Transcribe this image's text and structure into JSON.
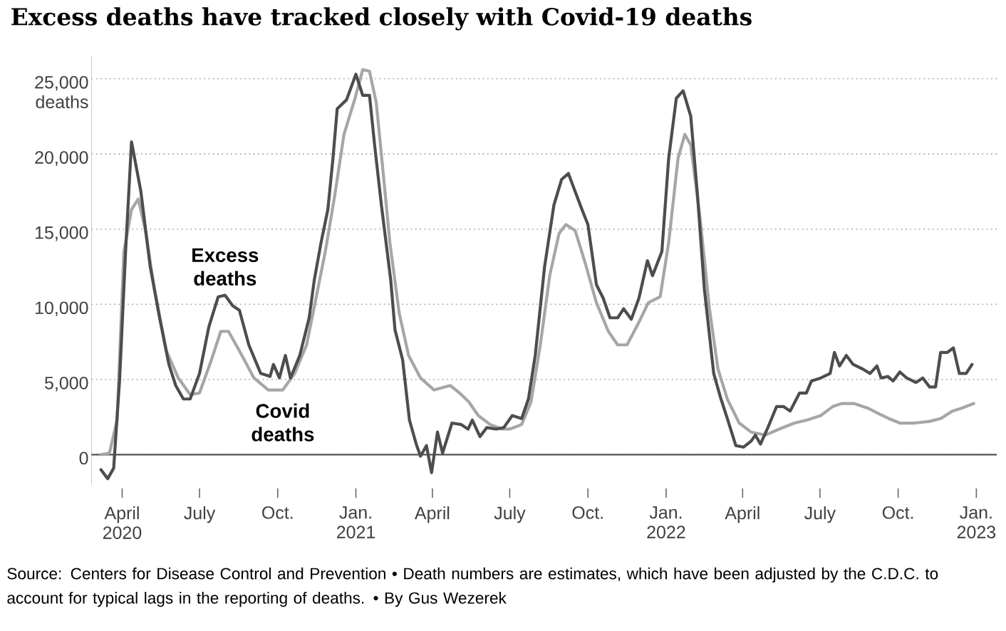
{
  "chart_data": {
    "type": "line",
    "title": "Excess deaths have tracked closely with Covid-19 deaths",
    "xlim": [
      "2020-02-25",
      "2023-01-25"
    ],
    "ylim": [
      -2000,
      26500
    ],
    "xticks": [
      {
        "value": "2020-04-01",
        "label": "April 2020"
      },
      {
        "value": "2020-07-01",
        "label": "July"
      },
      {
        "value": "2020-10-01",
        "label": "Oct."
      },
      {
        "value": "2021-01-01",
        "label": "Jan. 2021"
      },
      {
        "value": "2021-04-01",
        "label": "April"
      },
      {
        "value": "2021-07-01",
        "label": "July"
      },
      {
        "value": "2021-10-01",
        "label": "Oct."
      },
      {
        "value": "2022-01-01",
        "label": "Jan. 2022"
      },
      {
        "value": "2022-04-01",
        "label": "April"
      },
      {
        "value": "2022-07-01",
        "label": "July"
      },
      {
        "value": "2022-10-01",
        "label": "Oct."
      },
      {
        "value": "2023-01-01",
        "label": "Jan. 2023"
      }
    ],
    "yticks": [
      {
        "value": 0,
        "label": "0"
      },
      {
        "value": 5000,
        "label": "5,000"
      },
      {
        "value": 10000,
        "label": "10,000"
      },
      {
        "value": 15000,
        "label": "15,000"
      },
      {
        "value": 20000,
        "label": "20,000"
      },
      {
        "value": 25000,
        "label": "25,000 deaths"
      }
    ],
    "grid": "y",
    "legend": false,
    "marker": "none",
    "line_style": "solid",
    "ref_lines": [
      {
        "axis": "y",
        "value": 0,
        "color": "#555555"
      }
    ],
    "annotations": [
      "Source: Centers for Disease Control and Prevention • Death numbers are estimates, which have been adjusted by the C.D.C. to account for typical lags in the reporting of deaths. • By Gus Wezerek"
    ],
    "series": [
      {
        "name": "Covid deaths",
        "color": "#a6a6a6",
        "x": [
          "2020-03-07",
          "2020-03-17",
          "2020-03-26",
          "2020-04-03",
          "2020-04-12",
          "2020-04-20",
          "2020-04-28",
          "2020-05-09",
          "2020-05-23",
          "2020-06-06",
          "2020-06-20",
          "2020-07-01",
          "2020-07-15",
          "2020-07-26",
          "2020-08-04",
          "2020-08-17",
          "2020-09-03",
          "2020-09-20",
          "2020-10-07",
          "2020-10-21",
          "2020-11-04",
          "2020-11-15",
          "2020-11-26",
          "2020-12-07",
          "2020-12-18",
          "2020-12-31",
          "2021-01-09",
          "2021-01-17",
          "2021-01-25",
          "2021-02-02",
          "2021-02-10",
          "2021-02-21",
          "2021-03-04",
          "2021-03-18",
          "2021-04-03",
          "2021-04-22",
          "2021-05-03",
          "2021-05-14",
          "2021-05-25",
          "2021-06-08",
          "2021-06-22",
          "2021-07-01",
          "2021-07-15",
          "2021-07-26",
          "2021-08-06",
          "2021-08-17",
          "2021-08-28",
          "2021-09-05",
          "2021-09-16",
          "2021-09-27",
          "2021-10-11",
          "2021-10-25",
          "2021-11-05",
          "2021-11-16",
          "2021-11-30",
          "2021-12-11",
          "2021-12-25",
          "2022-01-04",
          "2022-01-15",
          "2022-01-23",
          "2022-01-30",
          "2022-02-10",
          "2022-02-21",
          "2022-03-03",
          "2022-03-14",
          "2022-03-28",
          "2022-04-11",
          "2022-04-28",
          "2022-05-14",
          "2022-06-01",
          "2022-06-16",
          "2022-07-02",
          "2022-07-16",
          "2022-07-27",
          "2022-08-10",
          "2022-08-26",
          "2022-09-09",
          "2022-09-20",
          "2022-10-03",
          "2022-10-20",
          "2022-11-06",
          "2022-11-20",
          "2022-12-04",
          "2022-12-15",
          "2022-12-29"
        ],
        "values": [
          0,
          100,
          2300,
          13500,
          16300,
          17000,
          15000,
          11000,
          6900,
          5100,
          4000,
          4100,
          6300,
          8200,
          8200,
          6900,
          5100,
          4300,
          4300,
          5400,
          7300,
          10400,
          13500,
          17200,
          21300,
          23700,
          25600,
          25500,
          23400,
          18800,
          14100,
          9400,
          6600,
          5100,
          4300,
          4600,
          4100,
          3500,
          2600,
          2000,
          1700,
          1700,
          2000,
          3500,
          7300,
          11900,
          14700,
          15300,
          14900,
          12900,
          10100,
          8200,
          7300,
          7300,
          8800,
          10100,
          10500,
          14100,
          19700,
          21300,
          20600,
          15700,
          9700,
          5700,
          3700,
          2100,
          1500,
          1300,
          1700,
          2100,
          2300,
          2600,
          3200,
          3400,
          3400,
          3100,
          2700,
          2400,
          2100,
          2100,
          2200,
          2400,
          2900,
          3100,
          3400
        ]
      },
      {
        "name": "Excess deaths",
        "color": "#4d4d4d",
        "x": [
          "2020-03-07",
          "2020-03-15",
          "2020-03-22",
          "2020-03-29",
          "2020-04-05",
          "2020-04-12",
          "2020-04-23",
          "2020-05-04",
          "2020-05-15",
          "2020-05-26",
          "2020-06-03",
          "2020-06-12",
          "2020-06-20",
          "2020-07-01",
          "2020-07-12",
          "2020-07-23",
          "2020-07-31",
          "2020-08-09",
          "2020-08-17",
          "2020-08-28",
          "2020-09-11",
          "2020-09-22",
          "2020-09-26",
          "2020-10-03",
          "2020-10-10",
          "2020-10-16",
          "2020-10-27",
          "2020-11-07",
          "2020-11-13",
          "2020-11-21",
          "2020-11-29",
          "2020-12-05",
          "2020-12-10",
          "2020-12-21",
          "2021-01-01",
          "2021-01-09",
          "2021-01-17",
          "2021-01-23",
          "2021-01-31",
          "2021-02-11",
          "2021-02-16",
          "2021-02-25",
          "2021-03-05",
          "2021-03-13",
          "2021-03-18",
          "2021-03-25",
          "2021-03-31",
          "2021-04-07",
          "2021-04-13",
          "2021-04-24",
          "2021-05-05",
          "2021-05-13",
          "2021-05-18",
          "2021-05-27",
          "2021-06-04",
          "2021-06-15",
          "2021-06-24",
          "2021-07-04",
          "2021-07-15",
          "2021-07-23",
          "2021-07-31",
          "2021-08-11",
          "2021-08-22",
          "2021-08-31",
          "2021-09-08",
          "2021-09-16",
          "2021-09-24",
          "2021-10-01",
          "2021-10-11",
          "2021-10-19",
          "2021-10-27",
          "2021-11-05",
          "2021-11-12",
          "2021-11-21",
          "2021-11-30",
          "2021-12-10",
          "2021-12-16",
          "2021-12-27",
          "2022-01-04",
          "2022-01-13",
          "2022-01-21",
          "2022-01-30",
          "2022-02-07",
          "2022-02-15",
          "2022-02-26",
          "2022-03-06",
          "2022-03-14",
          "2022-03-24",
          "2022-04-02",
          "2022-04-11",
          "2022-04-16",
          "2022-04-22",
          "2022-04-30",
          "2022-05-11",
          "2022-05-19",
          "2022-05-27",
          "2022-06-07",
          "2022-06-15",
          "2022-06-21",
          "2022-07-02",
          "2022-07-13",
          "2022-07-18",
          "2022-07-24",
          "2022-08-01",
          "2022-08-09",
          "2022-08-20",
          "2022-08-29",
          "2022-09-06",
          "2022-09-11",
          "2022-09-19",
          "2022-09-25",
          "2022-10-03",
          "2022-10-11",
          "2022-10-22",
          "2022-10-30",
          "2022-11-07",
          "2022-11-14",
          "2022-11-20",
          "2022-11-28",
          "2022-12-05",
          "2022-12-12",
          "2022-12-20",
          "2022-12-27"
        ],
        "values": [
          -1000,
          -1600,
          -900,
          5000,
          13500,
          20800,
          17500,
          12500,
          9100,
          6000,
          4600,
          3700,
          3700,
          5400,
          8500,
          10500,
          10600,
          9900,
          9600,
          7300,
          5400,
          5200,
          6000,
          5100,
          6600,
          5100,
          6600,
          9100,
          11600,
          14100,
          16300,
          19700,
          23000,
          23600,
          25300,
          23900,
          23900,
          20600,
          16600,
          11600,
          8300,
          6300,
          2300,
          700,
          -100,
          600,
          -1200,
          1500,
          100,
          2100,
          2000,
          1700,
          2300,
          1200,
          1800,
          1700,
          1800,
          2600,
          2400,
          3700,
          6600,
          12500,
          16600,
          18300,
          18700,
          17500,
          16300,
          15300,
          11300,
          10400,
          9100,
          9100,
          9700,
          9000,
          10400,
          12900,
          11900,
          13500,
          19700,
          23700,
          24200,
          22500,
          17200,
          11000,
          5400,
          3800,
          2400,
          600,
          500,
          900,
          1300,
          700,
          1700,
          3200,
          3200,
          2900,
          4100,
          4100,
          4900,
          5100,
          5400,
          6800,
          5900,
          6600,
          6000,
          5700,
          5400,
          5900,
          5100,
          5200,
          4900,
          5500,
          5100,
          4800,
          5100,
          4500,
          4500,
          6800,
          6800,
          7100,
          5400,
          5400,
          6000
        ]
      }
    ]
  }
}
